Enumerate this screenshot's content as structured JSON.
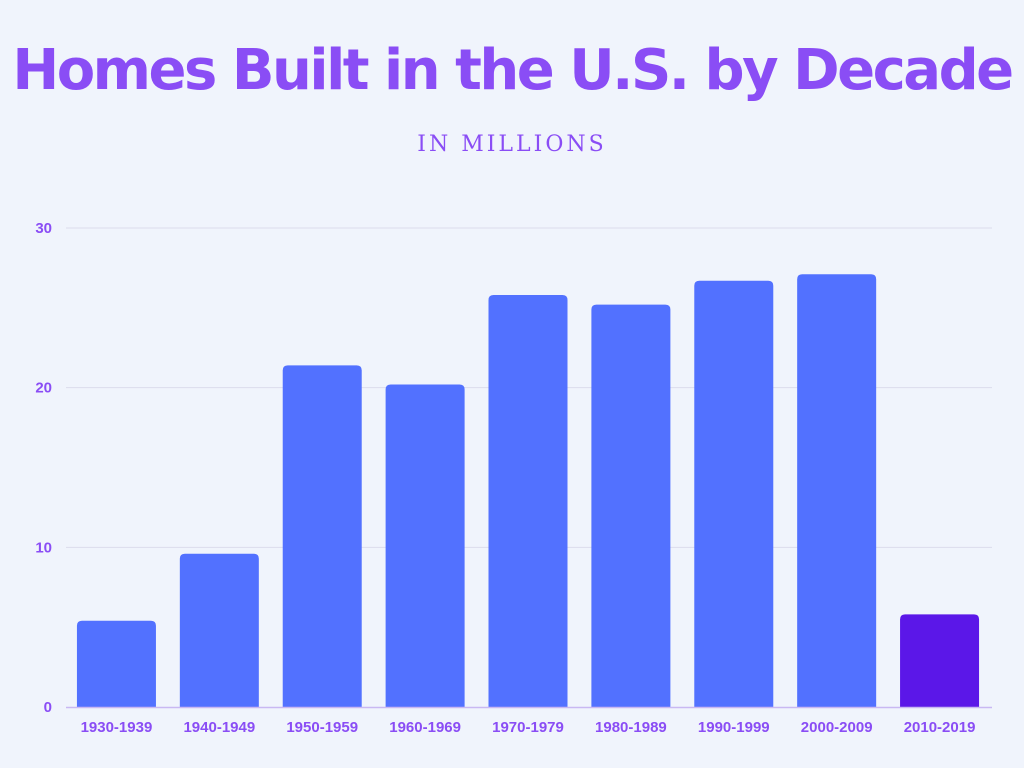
{
  "chart_data": {
    "type": "bar",
    "title": "Homes Built in the U.S. by Decade",
    "subtitle": "IN MILLIONS",
    "categories": [
      "1930-1939",
      "1940-1949",
      "1950-1959",
      "1960-1969",
      "1970-1979",
      "1980-1989",
      "1990-1999",
      "2000-2009",
      "2010-2019"
    ],
    "values": [
      5.4,
      9.6,
      21.4,
      20.2,
      25.8,
      25.2,
      26.7,
      27.1,
      5.8
    ],
    "xlabel": "",
    "ylabel": "",
    "ylim": [
      0,
      30
    ],
    "yticks": [
      0,
      10,
      20,
      30
    ],
    "grid": true,
    "colors": {
      "bar": "#5271ff",
      "highlight": "#5b17e8",
      "highlight_index": 8,
      "text": "#8a4df5",
      "grid": "#dcdcec",
      "axis": "#c9b8f2"
    }
  }
}
